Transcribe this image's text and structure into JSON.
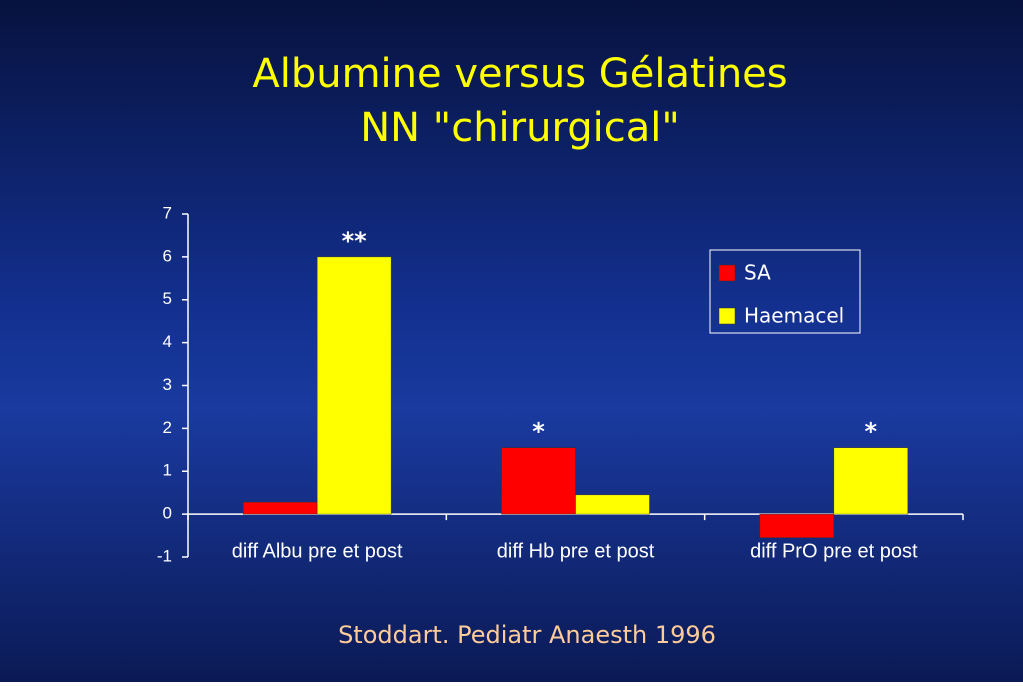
{
  "chart_data": {
    "type": "bar",
    "title": [
      "Albumine versus Gélatines",
      "NN \"chirurgical\""
    ],
    "source": "Stoddart. Pediatr Anaesth 1996",
    "categories": [
      "diff Albu pre et post",
      "diff Hb pre et post",
      "diff PrO pre et post"
    ],
    "series": [
      {
        "name": "SA",
        "color": "#ff0000",
        "values": [
          0.28,
          1.55,
          -0.55
        ]
      },
      {
        "name": "Haemacel",
        "color": "#ffff00",
        "values": [
          6.0,
          0.45,
          1.55
        ]
      }
    ],
    "annotations": [
      "**",
      "*",
      "*"
    ],
    "ylim": [
      -1,
      7
    ],
    "yticks": [
      -1,
      0,
      1,
      2,
      3,
      4,
      5,
      6,
      7
    ],
    "legend": "upper right",
    "grid": false
  }
}
